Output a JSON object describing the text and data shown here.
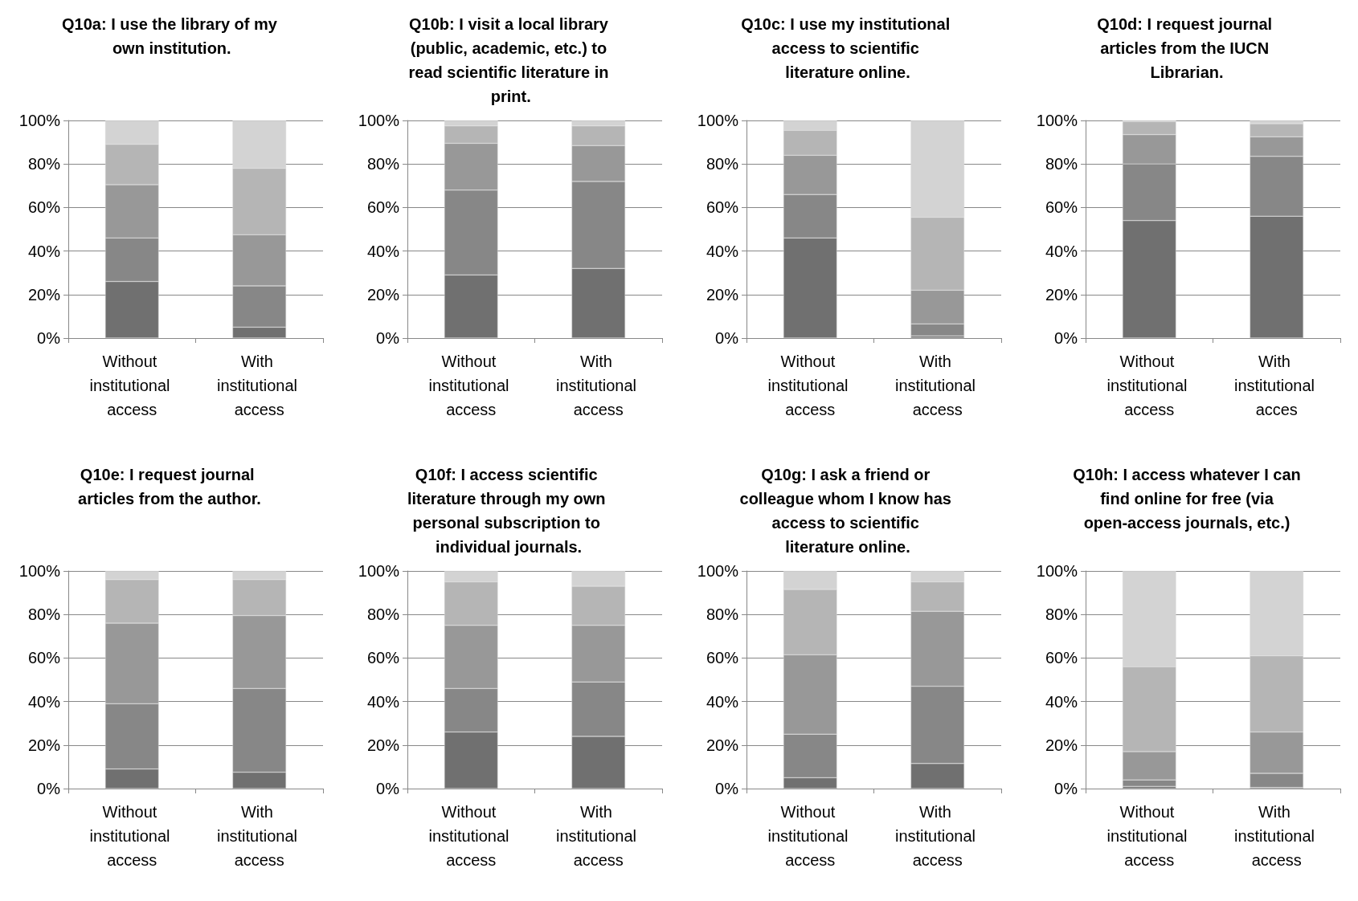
{
  "chart_data": [
    {
      "type": "bar",
      "stacked": true,
      "grid": "y",
      "title": "Q10a: I use the library of my own institution.",
      "categories": [
        "Without institutional access",
        "With institutional access"
      ],
      "ylim": [
        0,
        100
      ],
      "yticks": [
        {
          "value": 0,
          "label": "0%"
        },
        {
          "value": 20,
          "label": "20%"
        },
        {
          "value": 40,
          "label": "40%"
        },
        {
          "value": 60,
          "label": "60%"
        },
        {
          "value": 80,
          "label": "80%"
        },
        {
          "value": 100,
          "label": "100%"
        }
      ],
      "series": [
        {
          "color": "#707070",
          "values": [
            26,
            5
          ]
        },
        {
          "color": "#878787",
          "values": [
            20,
            19
          ]
        },
        {
          "color": "#989898",
          "values": [
            24.5,
            23.5
          ]
        },
        {
          "color": "#b5b5b5",
          "values": [
            18.5,
            30.5
          ]
        },
        {
          "color": "#d3d3d3",
          "values": [
            11,
            22
          ]
        }
      ]
    },
    {
      "type": "bar",
      "stacked": true,
      "grid": "y",
      "title": "Q10b: I visit a local library (public, academic, etc.) to read scientific literature in print.",
      "categories": [
        "Without institutional access",
        "With institutional access"
      ],
      "ylim": [
        0,
        100
      ],
      "yticks": [
        {
          "value": 0,
          "label": "0%"
        },
        {
          "value": 20,
          "label": "20%"
        },
        {
          "value": 40,
          "label": "40%"
        },
        {
          "value": 60,
          "label": "60%"
        },
        {
          "value": 80,
          "label": "80%"
        },
        {
          "value": 100,
          "label": "100%"
        }
      ],
      "series": [
        {
          "color": "#707070",
          "values": [
            29,
            32
          ]
        },
        {
          "color": "#878787",
          "values": [
            39,
            40
          ]
        },
        {
          "color": "#989898",
          "values": [
            21.5,
            16.5
          ]
        },
        {
          "color": "#b5b5b5",
          "values": [
            8,
            9
          ]
        },
        {
          "color": "#d3d3d3",
          "values": [
            2.5,
            2.5
          ]
        }
      ]
    },
    {
      "type": "bar",
      "stacked": true,
      "grid": "y",
      "title": "Q10c: I use my institutional access to scientific literature online.",
      "categories": [
        "Without institutional access",
        "With institutional access"
      ],
      "ylim": [
        0,
        100
      ],
      "yticks": [
        {
          "value": 0,
          "label": "0%"
        },
        {
          "value": 20,
          "label": "20%"
        },
        {
          "value": 40,
          "label": "40%"
        },
        {
          "value": 60,
          "label": "60%"
        },
        {
          "value": 80,
          "label": "80%"
        },
        {
          "value": 100,
          "label": "100%"
        }
      ],
      "series": [
        {
          "color": "#707070",
          "values": [
            46,
            1
          ]
        },
        {
          "color": "#878787",
          "values": [
            20,
            5.5
          ]
        },
        {
          "color": "#989898",
          "values": [
            18,
            15.5
          ]
        },
        {
          "color": "#b5b5b5",
          "values": [
            11.5,
            33.5
          ]
        },
        {
          "color": "#d3d3d3",
          "values": [
            4.5,
            44.5
          ]
        }
      ]
    },
    {
      "type": "bar",
      "stacked": true,
      "grid": "y",
      "title": "Q10d: I request journal articles from the IUCN Librarian.",
      "categories": [
        "Without institutional access",
        "With institutional acces"
      ],
      "ylim": [
        0,
        100
      ],
      "yticks": [
        {
          "value": 0,
          "label": "0%"
        },
        {
          "value": 20,
          "label": "20%"
        },
        {
          "value": 40,
          "label": "40%"
        },
        {
          "value": 60,
          "label": "60%"
        },
        {
          "value": 80,
          "label": "80%"
        },
        {
          "value": 100,
          "label": "100%"
        }
      ],
      "series": [
        {
          "color": "#707070",
          "values": [
            54,
            56
          ]
        },
        {
          "color": "#878787",
          "values": [
            26,
            27.5
          ]
        },
        {
          "color": "#989898",
          "values": [
            13.5,
            9
          ]
        },
        {
          "color": "#b5b5b5",
          "values": [
            6,
            6
          ]
        },
        {
          "color": "#d3d3d3",
          "values": [
            0.5,
            1.5
          ]
        }
      ]
    },
    {
      "type": "bar",
      "stacked": true,
      "grid": "y",
      "title": "Q10e: I request journal articles from the author.",
      "categories": [
        "Without institutional access",
        "With institutional access"
      ],
      "ylim": [
        0,
        100
      ],
      "yticks": [
        {
          "value": 0,
          "label": "0%"
        },
        {
          "value": 20,
          "label": "20%"
        },
        {
          "value": 40,
          "label": "40%"
        },
        {
          "value": 60,
          "label": "60%"
        },
        {
          "value": 80,
          "label": "80%"
        },
        {
          "value": 100,
          "label": "100%"
        }
      ],
      "series": [
        {
          "color": "#707070",
          "values": [
            9,
            7.5
          ]
        },
        {
          "color": "#878787",
          "values": [
            30,
            38.5
          ]
        },
        {
          "color": "#989898",
          "values": [
            37,
            33.5
          ]
        },
        {
          "color": "#b5b5b5",
          "values": [
            20,
            16.5
          ]
        },
        {
          "color": "#d3d3d3",
          "values": [
            4,
            4
          ]
        }
      ]
    },
    {
      "type": "bar",
      "stacked": true,
      "grid": "y",
      "title": "Q10f: I access scientific literature through my own personal subscription to individual journals.",
      "categories": [
        "Without institutional access",
        "With institutional access"
      ],
      "ylim": [
        0,
        100
      ],
      "yticks": [
        {
          "value": 0,
          "label": "0%"
        },
        {
          "value": 20,
          "label": "20%"
        },
        {
          "value": 40,
          "label": "40%"
        },
        {
          "value": 60,
          "label": "60%"
        },
        {
          "value": 80,
          "label": "80%"
        },
        {
          "value": 100,
          "label": "100%"
        }
      ],
      "series": [
        {
          "color": "#707070",
          "values": [
            26,
            24
          ]
        },
        {
          "color": "#878787",
          "values": [
            20,
            25
          ]
        },
        {
          "color": "#989898",
          "values": [
            29,
            26
          ]
        },
        {
          "color": "#b5b5b5",
          "values": [
            20,
            18
          ]
        },
        {
          "color": "#d3d3d3",
          "values": [
            5,
            7
          ]
        }
      ]
    },
    {
      "type": "bar",
      "stacked": true,
      "grid": "y",
      "title": "Q10g: I ask a friend or colleague whom I know has access to scientific literature online.",
      "categories": [
        "Without institutional access",
        "With institutional access"
      ],
      "ylim": [
        0,
        100
      ],
      "yticks": [
        {
          "value": 0,
          "label": "0%"
        },
        {
          "value": 20,
          "label": "20%"
        },
        {
          "value": 40,
          "label": "40%"
        },
        {
          "value": 60,
          "label": "60%"
        },
        {
          "value": 80,
          "label": "80%"
        },
        {
          "value": 100,
          "label": "100%"
        }
      ],
      "series": [
        {
          "color": "#707070",
          "values": [
            5,
            11.5
          ]
        },
        {
          "color": "#878787",
          "values": [
            20,
            35.5
          ]
        },
        {
          "color": "#989898",
          "values": [
            36.5,
            34.5
          ]
        },
        {
          "color": "#b5b5b5",
          "values": [
            30,
            13.5
          ]
        },
        {
          "color": "#d3d3d3",
          "values": [
            8.5,
            5
          ]
        }
      ]
    },
    {
      "type": "bar",
      "stacked": true,
      "grid": "y",
      "title": "Q10h: I access whatever I can find online for free (via open-access journals, etc.)",
      "categories": [
        "Without institutional access",
        "With institutional access"
      ],
      "ylim": [
        0,
        100
      ],
      "yticks": [
        {
          "value": 0,
          "label": "0%"
        },
        {
          "value": 20,
          "label": "20%"
        },
        {
          "value": 40,
          "label": "40%"
        },
        {
          "value": 60,
          "label": "60%"
        },
        {
          "value": 80,
          "label": "80%"
        },
        {
          "value": 100,
          "label": "100%"
        }
      ],
      "series": [
        {
          "color": "#707070",
          "values": [
            1,
            0.5
          ]
        },
        {
          "color": "#878787",
          "values": [
            3,
            6.5
          ]
        },
        {
          "color": "#989898",
          "values": [
            13,
            19
          ]
        },
        {
          "color": "#b5b5b5",
          "values": [
            39,
            35
          ]
        },
        {
          "color": "#d3d3d3",
          "values": [
            44,
            39
          ]
        }
      ]
    }
  ]
}
